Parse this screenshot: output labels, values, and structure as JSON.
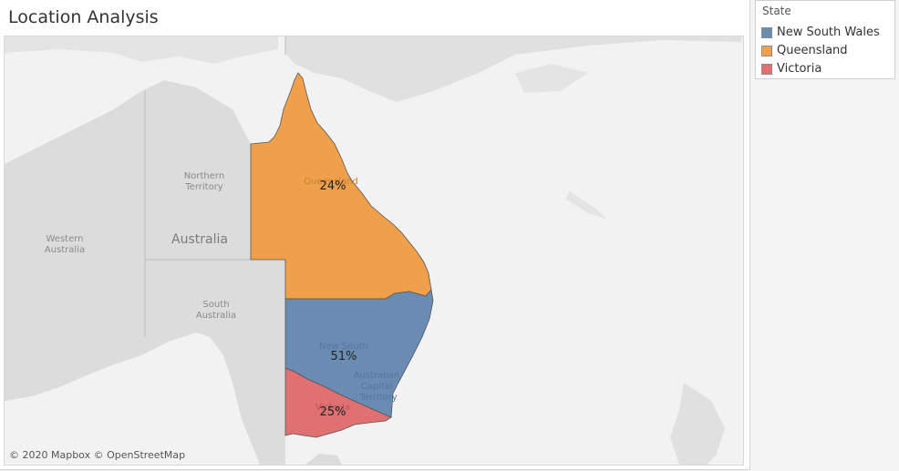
{
  "title": "Location Analysis",
  "map": {
    "country_label": "Australia",
    "other_states": [
      {
        "line1": "Western",
        "line2": "Australia"
      },
      {
        "line1": "Northern",
        "line2": "Territory"
      },
      {
        "line1": "South",
        "line2": "Australia"
      }
    ],
    "faint_labels": {
      "queensland": "Queensland",
      "nsw": "New South",
      "act_line1": "Australian",
      "act_line2": "Capital",
      "act_line3": "Territory",
      "victoria": "Victoria"
    },
    "land_color": "#dcdcdc",
    "water_color": "#f2f2f2",
    "attribution": "© 2020 Mapbox © OpenStreetMap"
  },
  "legend": {
    "title": "State",
    "items": [
      {
        "label": "New South Wales",
        "color": "#6a8cb3"
      },
      {
        "label": "Queensland",
        "color": "#f0a04b"
      },
      {
        "label": "Victoria",
        "color": "#e07072"
      }
    ]
  },
  "regions": [
    {
      "state": "Queensland",
      "share": 24,
      "label": "24%",
      "color": "#f0a04b"
    },
    {
      "state": "New South Wales",
      "share": 51,
      "label": "51%",
      "color": "#6a8cb3"
    },
    {
      "state": "Victoria",
      "share": 25,
      "label": "25%",
      "color": "#e07072"
    }
  ]
}
